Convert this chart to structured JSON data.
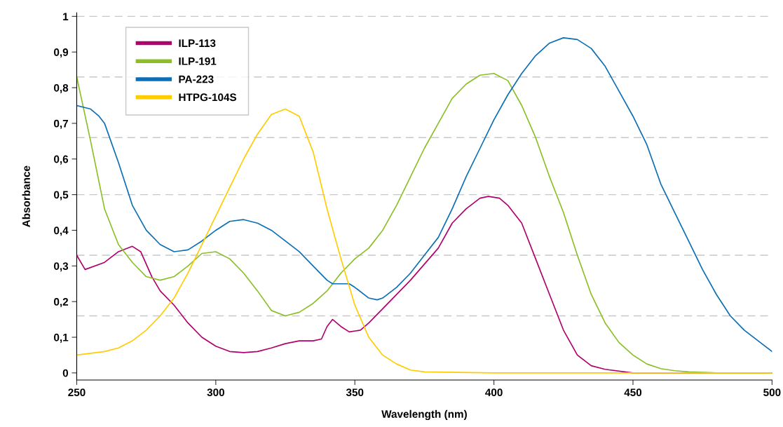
{
  "chart_data": {
    "type": "line",
    "xlabel": "Wavelength (nm)",
    "ylabel": "Absorbance",
    "xlim": [
      250,
      500
    ],
    "xticks": [
      250,
      300,
      350,
      400,
      450,
      500
    ],
    "ylim": [
      -0.02,
      1.01
    ],
    "yticks": [
      {
        "value": 0,
        "label": "0"
      },
      {
        "value": 0.1,
        "label": "0,1"
      },
      {
        "value": 0.2,
        "label": "0,2"
      },
      {
        "value": 0.3,
        "label": "0,3"
      },
      {
        "value": 0.4,
        "label": "0,4"
      },
      {
        "value": 0.5,
        "label": "0,5"
      },
      {
        "value": 0.6,
        "label": "0,6"
      },
      {
        "value": 0.7,
        "label": "0,7"
      },
      {
        "value": 0.8,
        "label": "0,8"
      },
      {
        "value": 0.9,
        "label": "0,9"
      },
      {
        "value": 1,
        "label": "1"
      }
    ],
    "grid": false,
    "legend": "top left",
    "marker": "none",
    "line_style": "solid",
    "ref_lines": [
      {
        "axis": "y",
        "value": 0.16,
        "color": "#c8c8c8",
        "line_style": "dashed"
      },
      {
        "axis": "y",
        "value": 0.33,
        "color": "#c8c8c8",
        "line_style": "dashed"
      },
      {
        "axis": "y",
        "value": 0.5,
        "color": "#c8c8c8",
        "line_style": "dashed"
      },
      {
        "axis": "y",
        "value": 0.66,
        "color": "#c8c8c8",
        "line_style": "dashed"
      },
      {
        "axis": "y",
        "value": 0.83,
        "color": "#c8c8c8",
        "line_style": "dashed"
      },
      {
        "axis": "y",
        "value": 1,
        "color": "#c8c8c8",
        "line_style": "dashed"
      }
    ],
    "series": [
      {
        "name": "ILP-113",
        "color": "#b0006e",
        "x": [
          250,
          253,
          260,
          265,
          270,
          273,
          277,
          280,
          285,
          290,
          295,
          300,
          305,
          310,
          315,
          320,
          325,
          330,
          335,
          338,
          340,
          342,
          345,
          348,
          352,
          355,
          360,
          370,
          380,
          385,
          390,
          395,
          398,
          402,
          405,
          410,
          415,
          420,
          425,
          430,
          435,
          440,
          450,
          500
        ],
        "values": [
          0.33,
          0.29,
          0.31,
          0.34,
          0.355,
          0.34,
          0.27,
          0.23,
          0.19,
          0.14,
          0.1,
          0.075,
          0.06,
          0.057,
          0.06,
          0.07,
          0.082,
          0.09,
          0.09,
          0.095,
          0.13,
          0.15,
          0.13,
          0.115,
          0.12,
          0.14,
          0.18,
          0.26,
          0.35,
          0.42,
          0.46,
          0.49,
          0.495,
          0.49,
          0.47,
          0.42,
          0.32,
          0.22,
          0.12,
          0.05,
          0.02,
          0.01,
          0.0,
          0.0
        ]
      },
      {
        "name": "ILP-191",
        "color": "#8cbf26",
        "x": [
          250,
          255,
          260,
          265,
          270,
          275,
          280,
          285,
          290,
          295,
          300,
          305,
          310,
          315,
          320,
          325,
          330,
          335,
          340,
          345,
          350,
          355,
          360,
          365,
          370,
          375,
          380,
          385,
          390,
          395,
          400,
          405,
          410,
          415,
          420,
          425,
          430,
          435,
          440,
          445,
          450,
          455,
          460,
          465,
          470,
          480,
          500
        ],
        "values": [
          0.83,
          0.65,
          0.46,
          0.36,
          0.31,
          0.27,
          0.26,
          0.27,
          0.3,
          0.335,
          0.34,
          0.32,
          0.28,
          0.23,
          0.175,
          0.16,
          0.17,
          0.195,
          0.23,
          0.28,
          0.32,
          0.35,
          0.4,
          0.47,
          0.55,
          0.63,
          0.7,
          0.77,
          0.81,
          0.835,
          0.84,
          0.82,
          0.75,
          0.66,
          0.55,
          0.45,
          0.33,
          0.22,
          0.14,
          0.085,
          0.05,
          0.025,
          0.012,
          0.006,
          0.003,
          0.0,
          0.0
        ]
      },
      {
        "name": "PA-223",
        "color": "#0a6fb5",
        "x": [
          250,
          255,
          258,
          260,
          265,
          270,
          275,
          280,
          285,
          290,
          295,
          300,
          305,
          310,
          315,
          320,
          325,
          330,
          335,
          340,
          342,
          345,
          348,
          350,
          355,
          358,
          360,
          365,
          370,
          375,
          380,
          385,
          390,
          395,
          400,
          405,
          410,
          415,
          420,
          425,
          430,
          435,
          440,
          445,
          450,
          455,
          460,
          465,
          470,
          475,
          480,
          485,
          490,
          495,
          500
        ],
        "values": [
          0.75,
          0.74,
          0.72,
          0.7,
          0.59,
          0.47,
          0.4,
          0.36,
          0.34,
          0.345,
          0.37,
          0.4,
          0.425,
          0.43,
          0.42,
          0.4,
          0.37,
          0.34,
          0.3,
          0.26,
          0.25,
          0.25,
          0.25,
          0.24,
          0.21,
          0.205,
          0.21,
          0.24,
          0.28,
          0.33,
          0.38,
          0.46,
          0.55,
          0.63,
          0.71,
          0.78,
          0.84,
          0.89,
          0.925,
          0.94,
          0.935,
          0.91,
          0.86,
          0.79,
          0.72,
          0.64,
          0.53,
          0.45,
          0.37,
          0.29,
          0.22,
          0.16,
          0.12,
          0.09,
          0.06
        ]
      },
      {
        "name": "HTPG-104S",
        "color": "#ffcc00",
        "x": [
          250,
          260,
          265,
          270,
          275,
          280,
          285,
          290,
          295,
          300,
          305,
          310,
          315,
          320,
          325,
          330,
          335,
          340,
          345,
          350,
          355,
          360,
          365,
          370,
          375,
          400,
          500
        ],
        "values": [
          0.05,
          0.06,
          0.07,
          0.09,
          0.12,
          0.16,
          0.21,
          0.28,
          0.36,
          0.44,
          0.52,
          0.6,
          0.67,
          0.725,
          0.74,
          0.72,
          0.62,
          0.46,
          0.32,
          0.19,
          0.1,
          0.05,
          0.025,
          0.008,
          0.003,
          0.0,
          0.0
        ]
      }
    ]
  }
}
